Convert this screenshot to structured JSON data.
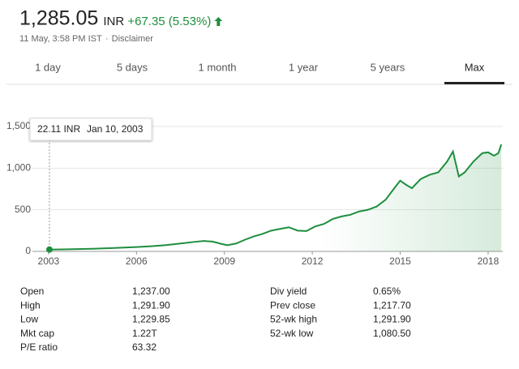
{
  "header": {
    "price": "1,285.05",
    "currency": "INR",
    "change": "+67.35 (5.53%)",
    "timestamp": "11 May, 3:58 PM IST",
    "separator": "·",
    "disclaimer": "Disclaimer"
  },
  "tabs": [
    "1 day",
    "5 days",
    "1 month",
    "1 year",
    "5 years",
    "Max"
  ],
  "selected_tab": "Max",
  "chart_data": {
    "type": "line",
    "color": "#1e8e3e",
    "x": [
      2003.0,
      2003.5,
      2004,
      2004.5,
      2005,
      2005.5,
      2006,
      2006.5,
      2007,
      2007.5,
      2008,
      2008.3,
      2008.6,
      2008.9,
      2009.1,
      2009.4,
      2009.7,
      2010,
      2010.3,
      2010.6,
      2010.9,
      2011.2,
      2011.5,
      2011.8,
      2012.1,
      2012.4,
      2012.7,
      2013,
      2013.3,
      2013.6,
      2013.9,
      2014.2,
      2014.5,
      2014.8,
      2015,
      2015.2,
      2015.4,
      2015.7,
      2016,
      2016.3,
      2016.6,
      2016.8,
      2017,
      2017.2,
      2017.5,
      2017.8,
      2018.0,
      2018.2,
      2018.35,
      2018.45
    ],
    "values": [
      22,
      24,
      28,
      32,
      38,
      45,
      52,
      62,
      75,
      95,
      115,
      125,
      118,
      90,
      75,
      95,
      140,
      180,
      210,
      250,
      270,
      290,
      250,
      245,
      300,
      330,
      390,
      420,
      440,
      480,
      500,
      540,
      620,
      760,
      850,
      800,
      760,
      870,
      920,
      950,
      1080,
      1200,
      900,
      950,
      1080,
      1180,
      1190,
      1150,
      1180,
      1285
    ],
    "xlim": [
      2002.45,
      2018.5
    ],
    "xticks": [
      2003,
      2006,
      2009,
      2012,
      2015,
      2018
    ],
    "ylim": [
      0,
      1500
    ],
    "yticks": [
      0,
      500,
      {
        "value": 1000,
        "label": "1,000"
      },
      {
        "value": 1500,
        "label": "1,500"
      }
    ],
    "grid": true,
    "tooltip": {
      "label": "22.11 INR",
      "date": "Jan 10, 2003",
      "value": 22.11,
      "x": 2003.03
    }
  },
  "stats": [
    [
      [
        "Open",
        "1,237.00"
      ],
      [
        "High",
        "1,291.90"
      ],
      [
        "Low",
        "1,229.85"
      ],
      [
        "Mkt cap",
        "1.22T"
      ],
      [
        "P/E ratio",
        "63.32"
      ]
    ],
    [
      [
        "Div yield",
        "0.65%"
      ],
      [
        "Prev close",
        "1,217.70"
      ],
      [
        "52-wk high",
        "1,291.90"
      ],
      [
        "52-wk low",
        "1,080.50"
      ]
    ]
  ]
}
